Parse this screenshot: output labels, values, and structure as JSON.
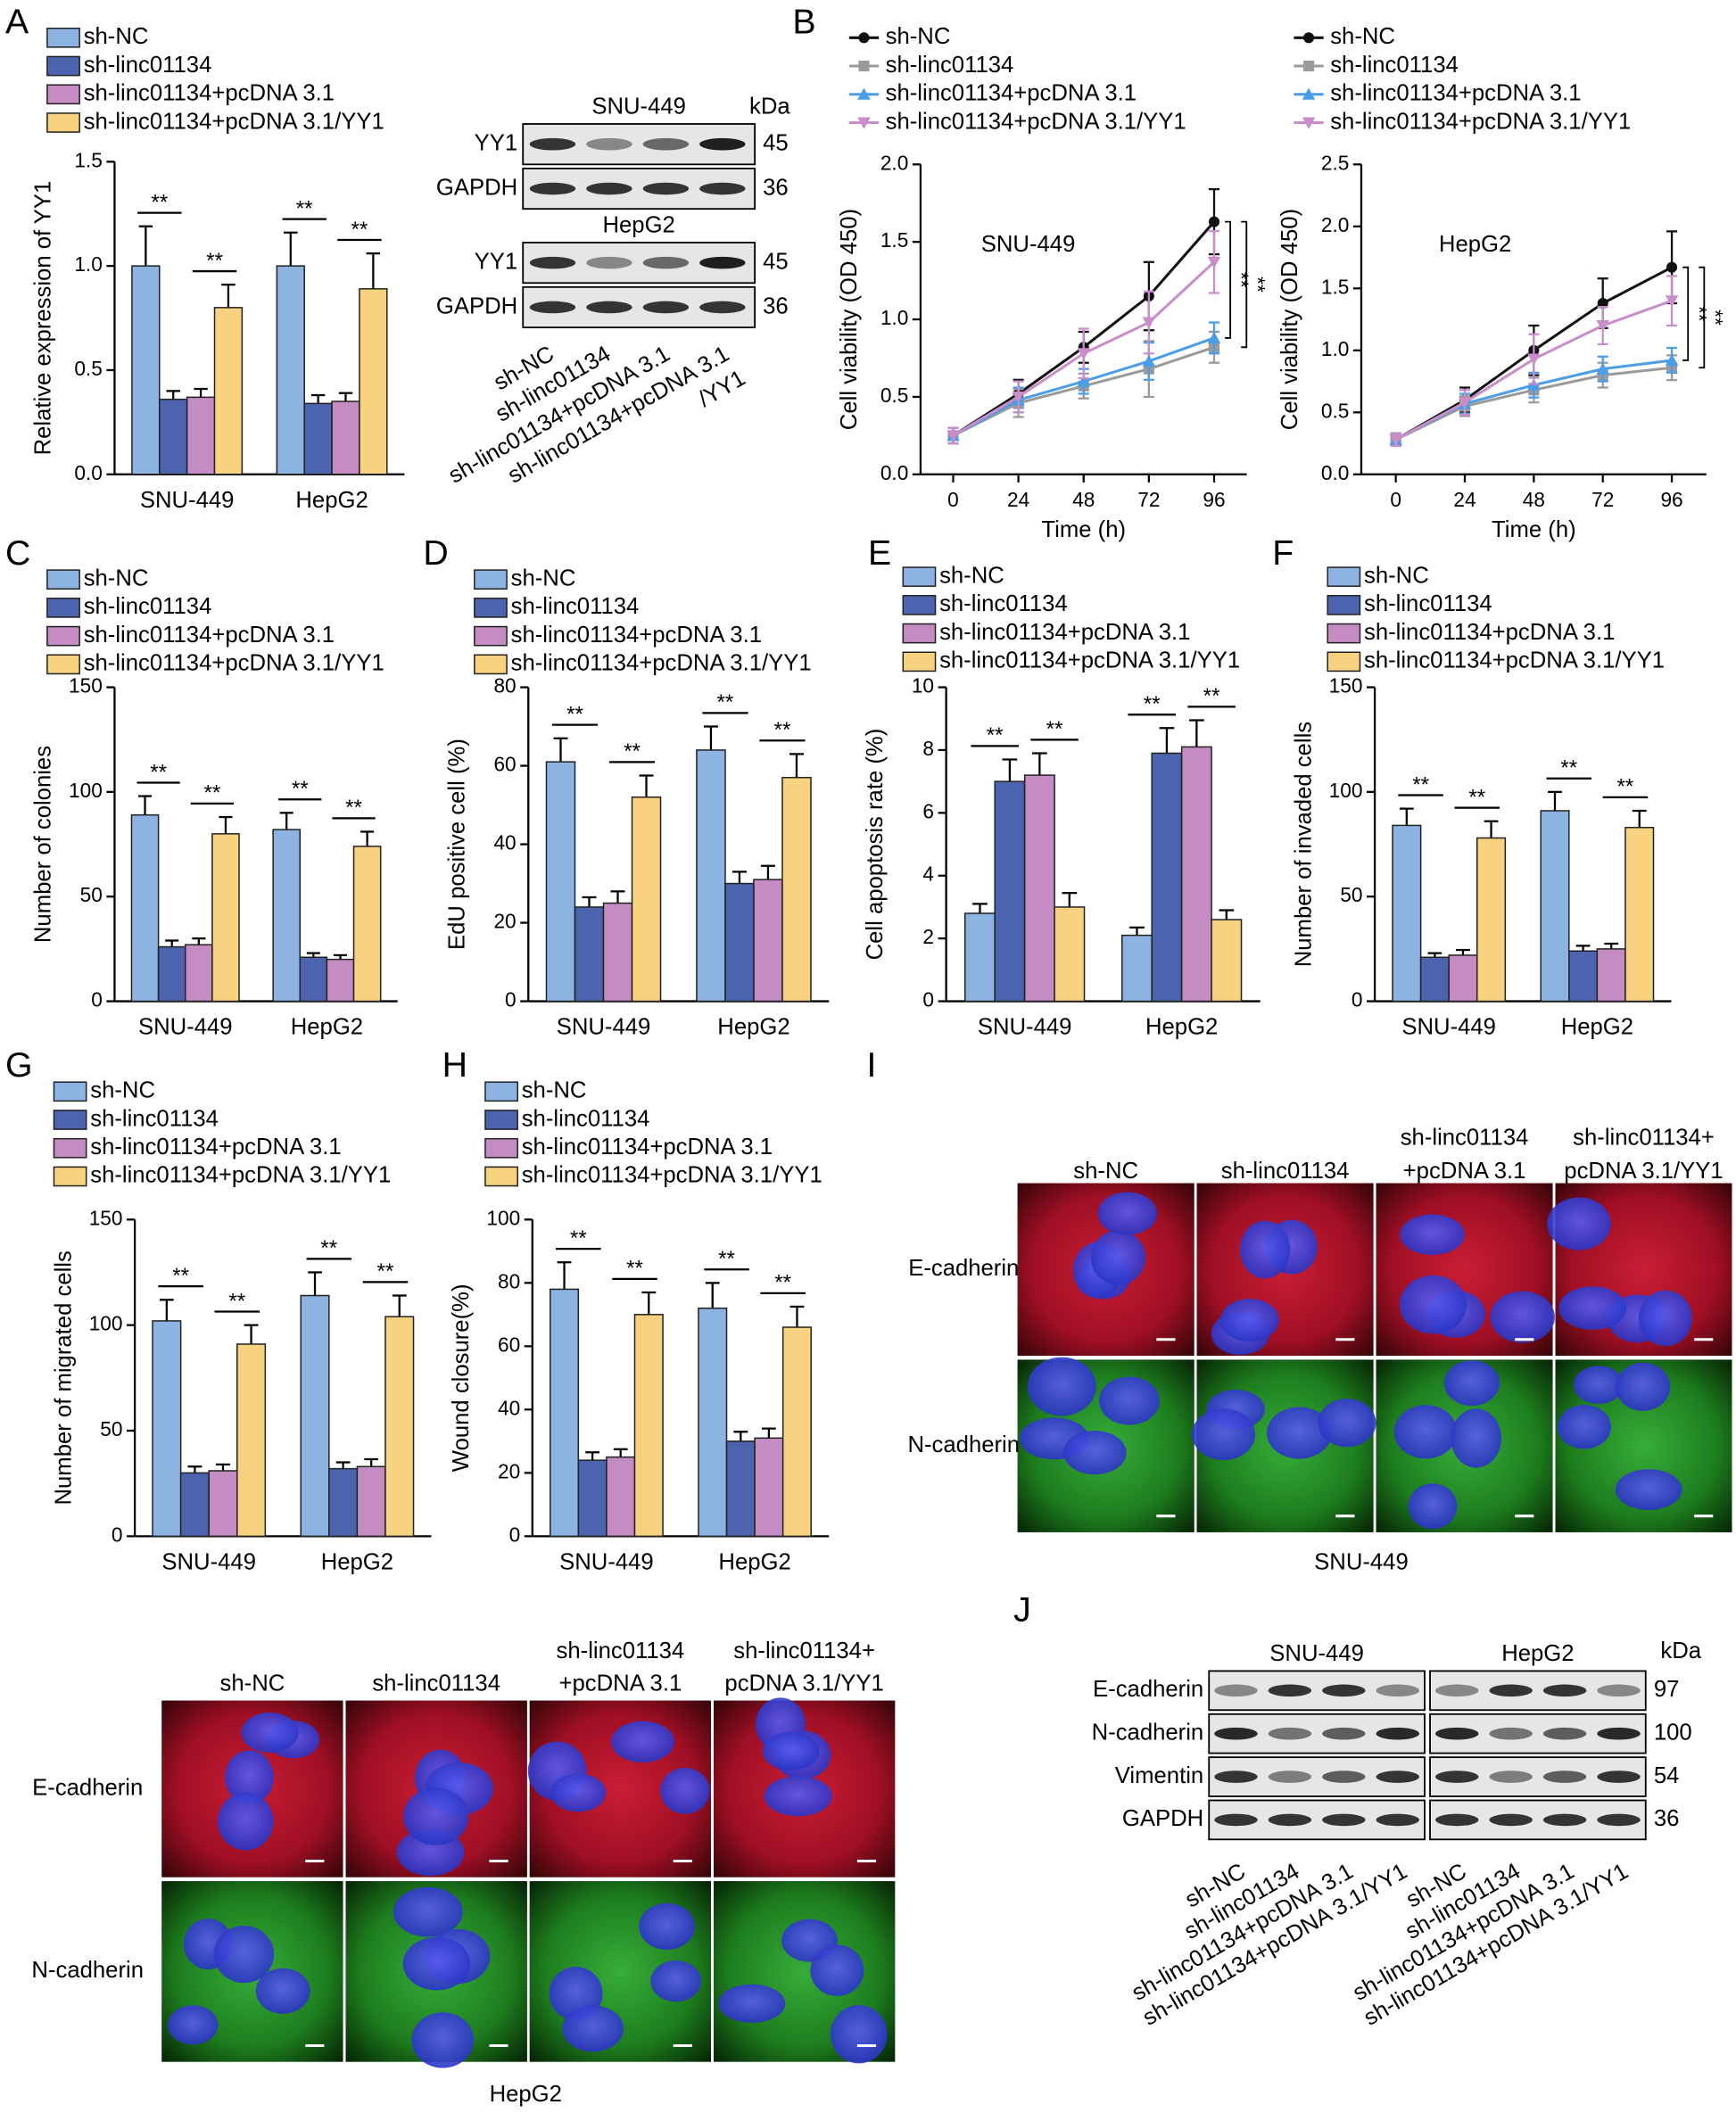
{
  "panel_labels": [
    "A",
    "B",
    "C",
    "D",
    "E",
    "F",
    "G",
    "H",
    "I",
    "J"
  ],
  "chart_data": [
    {
      "type": "bar",
      "ylabel": "Relative expression of YY1",
      "categories": [
        "SNU-449",
        "HepG2"
      ],
      "ylim": [
        0,
        1.5
      ],
      "yticks": [
        {
          "value": 0,
          "label": "0.0"
        },
        {
          "value": 0.5,
          "label": "0.5"
        },
        {
          "value": 1,
          "label": "1.0"
        },
        {
          "value": 1.5,
          "label": "1.5"
        }
      ],
      "series": [
        {
          "name": "sh-NC",
          "color": "#8db3e2",
          "values": [
            1.0,
            1.0
          ],
          "errors": [
            0.19,
            0.16
          ]
        },
        {
          "name": "sh-linc01134",
          "color": "#4c63ad",
          "values": [
            0.36,
            0.34
          ],
          "errors": [
            0.04,
            0.04
          ]
        },
        {
          "name": "sh-linc01134+pcDNA 3.1",
          "color": "#c58cc3",
          "values": [
            0.37,
            0.35
          ],
          "errors": [
            0.04,
            0.04
          ]
        },
        {
          "name": "sh-linc01134+pcDNA 3.1/YY1",
          "color": "#f8d27f",
          "values": [
            0.8,
            0.89
          ],
          "errors": [
            0.11,
            0.17
          ]
        }
      ],
      "significance": [
        "**",
        "**",
        "**",
        "**"
      ]
    },
    {
      "type": "line",
      "ylabel": "Cell viability (OD 450)",
      "xlabel": "Time (h)",
      "annotation": "SNU-449",
      "x": [
        0,
        24,
        48,
        72,
        96
      ],
      "xlim": [
        -12,
        108
      ],
      "xticks": [
        0,
        24,
        48,
        72,
        96
      ],
      "ylim": [
        0,
        2
      ],
      "yticks": [
        {
          "value": 0,
          "label": "0.0"
        },
        {
          "value": 0.5,
          "label": "0.5"
        },
        {
          "value": 1,
          "label": "1.0"
        },
        {
          "value": 1.5,
          "label": "1.5"
        },
        {
          "value": 2,
          "label": "2.0"
        }
      ],
      "series": [
        {
          "name": "sh-NC",
          "color": "#111111",
          "marker": "circle",
          "values": [
            0.25,
            0.52,
            0.82,
            1.15,
            1.63
          ],
          "errors": [
            0.05,
            0.09,
            0.1,
            0.22,
            0.21
          ]
        },
        {
          "name": "sh-linc01134",
          "color": "#9a9a9a",
          "marker": "square",
          "values": [
            0.25,
            0.46,
            0.57,
            0.68,
            0.82
          ],
          "errors": [
            0.05,
            0.09,
            0.08,
            0.18,
            0.1
          ]
        },
        {
          "name": "sh-linc01134+pcDNA 3.1",
          "color": "#4a9ee8",
          "marker": "triangle-up",
          "values": [
            0.25,
            0.48,
            0.6,
            0.73,
            0.88
          ],
          "errors": [
            0.05,
            0.08,
            0.08,
            0.12,
            0.1
          ]
        },
        {
          "name": "sh-linc01134+pcDNA 3.1/YY1",
          "color": "#c98ec9",
          "marker": "triangle-down",
          "values": [
            0.25,
            0.5,
            0.78,
            0.98,
            1.37
          ],
          "errors": [
            0.05,
            0.1,
            0.16,
            0.2,
            0.2
          ]
        }
      ],
      "significance": [
        "**",
        "**"
      ]
    },
    {
      "type": "line",
      "ylabel": "Cell viability (OD 450)",
      "xlabel": "Time (h)",
      "annotation": "HepG2",
      "x": [
        0,
        24,
        48,
        72,
        96
      ],
      "xlim": [
        -12,
        108
      ],
      "xticks": [
        0,
        24,
        48,
        72,
        96
      ],
      "ylim": [
        0,
        2.5
      ],
      "yticks": [
        {
          "value": 0,
          "label": "0.0"
        },
        {
          "value": 0.5,
          "label": "0.5"
        },
        {
          "value": 1,
          "label": "1.0"
        },
        {
          "value": 1.5,
          "label": "1.5"
        },
        {
          "value": 2,
          "label": "2.0"
        },
        {
          "value": 2.5,
          "label": "2.5"
        }
      ],
      "series": [
        {
          "name": "sh-NC",
          "color": "#111111",
          "marker": "circle",
          "values": [
            0.28,
            0.6,
            1.0,
            1.38,
            1.67
          ],
          "errors": [
            0.05,
            0.1,
            0.2,
            0.2,
            0.29
          ]
        },
        {
          "name": "sh-linc01134",
          "color": "#9a9a9a",
          "marker": "square",
          "values": [
            0.28,
            0.55,
            0.68,
            0.8,
            0.86
          ],
          "errors": [
            0.05,
            0.08,
            0.1,
            0.1,
            0.1
          ]
        },
        {
          "name": "sh-linc01134+pcDNA 3.1",
          "color": "#4a9ee8",
          "marker": "triangle-up",
          "values": [
            0.28,
            0.57,
            0.72,
            0.85,
            0.92
          ],
          "errors": [
            0.05,
            0.08,
            0.1,
            0.1,
            0.1
          ]
        },
        {
          "name": "sh-linc01134+pcDNA 3.1/YY1",
          "color": "#c98ec9",
          "marker": "triangle-down",
          "values": [
            0.28,
            0.58,
            0.93,
            1.2,
            1.4
          ],
          "errors": [
            0.05,
            0.1,
            0.2,
            0.15,
            0.2
          ]
        }
      ],
      "significance": [
        "**",
        "**"
      ]
    },
    {
      "type": "bar",
      "ylabel": "Number of colonies",
      "categories": [
        "SNU-449",
        "HepG2"
      ],
      "ylim": [
        0,
        150
      ],
      "yticks": [
        0,
        50,
        100,
        150
      ],
      "series": [
        {
          "name": "sh-NC",
          "color": "#8db3e2",
          "values": [
            89,
            82
          ],
          "errors": [
            9,
            8
          ]
        },
        {
          "name": "sh-linc01134",
          "color": "#4c63ad",
          "values": [
            26,
            21
          ],
          "errors": [
            3,
            2
          ]
        },
        {
          "name": "sh-linc01134+pcDNA 3.1",
          "color": "#c58cc3",
          "values": [
            27,
            20
          ],
          "errors": [
            3,
            2
          ]
        },
        {
          "name": "sh-linc01134+pcDNA 3.1/YY1",
          "color": "#f8d27f",
          "values": [
            80,
            74
          ],
          "errors": [
            8,
            7
          ]
        }
      ],
      "significance": [
        "**",
        "**",
        "**",
        "**"
      ]
    },
    {
      "type": "bar",
      "ylabel": "EdU positive cell (%)",
      "categories": [
        "SNU-449",
        "HepG2"
      ],
      "ylim": [
        0,
        80
      ],
      "yticks": [
        0,
        20,
        40,
        60,
        80
      ],
      "series": [
        {
          "name": "sh-NC",
          "color": "#8db3e2",
          "values": [
            61,
            64
          ],
          "errors": [
            6,
            6
          ]
        },
        {
          "name": "sh-linc01134",
          "color": "#4c63ad",
          "values": [
            24,
            30
          ],
          "errors": [
            2.5,
            3
          ]
        },
        {
          "name": "sh-linc01134+pcDNA 3.1",
          "color": "#c58cc3",
          "values": [
            25,
            31
          ],
          "errors": [
            3,
            3.5
          ]
        },
        {
          "name": "sh-linc01134+pcDNA 3.1/YY1",
          "color": "#f8d27f",
          "values": [
            52,
            57
          ],
          "errors": [
            5.5,
            6
          ]
        }
      ],
      "significance": [
        "**",
        "**",
        "**",
        "**"
      ]
    },
    {
      "type": "bar",
      "ylabel": "Cell apoptosis rate (%)",
      "categories": [
        "SNU-449",
        "HepG2"
      ],
      "ylim": [
        0,
        10
      ],
      "yticks": [
        0,
        2,
        4,
        6,
        8,
        10
      ],
      "series": [
        {
          "name": "sh-NC",
          "color": "#8db3e2",
          "values": [
            2.8,
            2.1
          ],
          "errors": [
            0.3,
            0.25
          ]
        },
        {
          "name": "sh-linc01134",
          "color": "#4c63ad",
          "values": [
            7.0,
            7.9
          ],
          "errors": [
            0.7,
            0.8
          ]
        },
        {
          "name": "sh-linc01134+pcDNA 3.1",
          "color": "#c58cc3",
          "values": [
            7.2,
            8.1
          ],
          "errors": [
            0.7,
            0.85
          ]
        },
        {
          "name": "sh-linc01134+pcDNA 3.1/YY1",
          "color": "#f8d27f",
          "values": [
            3.0,
            2.6
          ],
          "errors": [
            0.45,
            0.3
          ]
        }
      ],
      "significance": [
        "**",
        "**",
        "**",
        "**"
      ]
    },
    {
      "type": "bar",
      "ylabel": "Number of invaded cells",
      "categories": [
        "SNU-449",
        "HepG2"
      ],
      "ylim": [
        0,
        150
      ],
      "yticks": [
        0,
        50,
        100,
        150
      ],
      "series": [
        {
          "name": "sh-NC",
          "color": "#8db3e2",
          "values": [
            84,
            91
          ],
          "errors": [
            8,
            9
          ]
        },
        {
          "name": "sh-linc01134",
          "color": "#4c63ad",
          "values": [
            21,
            24
          ],
          "errors": [
            2,
            2.5
          ]
        },
        {
          "name": "sh-linc01134+pcDNA 3.1",
          "color": "#c58cc3",
          "values": [
            22,
            25
          ],
          "errors": [
            2.5,
            2.5
          ]
        },
        {
          "name": "sh-linc01134+pcDNA 3.1/YY1",
          "color": "#f8d27f",
          "values": [
            78,
            83
          ],
          "errors": [
            8,
            8
          ]
        }
      ],
      "significance": [
        "**",
        "**",
        "**",
        "**"
      ]
    },
    {
      "type": "bar",
      "ylabel": "Number of migrated cells",
      "categories": [
        "SNU-449",
        "HepG2"
      ],
      "ylim": [
        0,
        150
      ],
      "yticks": [
        0,
        50,
        100,
        150
      ],
      "series": [
        {
          "name": "sh-NC",
          "color": "#8db3e2",
          "values": [
            102,
            114
          ],
          "errors": [
            10,
            11
          ]
        },
        {
          "name": "sh-linc01134",
          "color": "#4c63ad",
          "values": [
            30,
            32
          ],
          "errors": [
            3,
            3
          ]
        },
        {
          "name": "sh-linc01134+pcDNA 3.1",
          "color": "#c58cc3",
          "values": [
            31,
            33
          ],
          "errors": [
            3,
            3.5
          ]
        },
        {
          "name": "sh-linc01134+pcDNA 3.1/YY1",
          "color": "#f8d27f",
          "values": [
            91,
            104
          ],
          "errors": [
            9,
            10
          ]
        }
      ],
      "significance": [
        "**",
        "**",
        "**",
        "**"
      ]
    },
    {
      "type": "bar",
      "ylabel": "Wound closure(%)",
      "categories": [
        "SNU-449",
        "HepG2"
      ],
      "ylim": [
        0,
        100
      ],
      "yticks": [
        0,
        20,
        40,
        60,
        80,
        100
      ],
      "series": [
        {
          "name": "sh-NC",
          "color": "#8db3e2",
          "values": [
            78,
            72
          ],
          "errors": [
            8.5,
            8
          ]
        },
        {
          "name": "sh-linc01134",
          "color": "#4c63ad",
          "values": [
            24,
            30
          ],
          "errors": [
            2.5,
            3
          ]
        },
        {
          "name": "sh-linc01134+pcDNA 3.1",
          "color": "#c58cc3",
          "values": [
            25,
            31
          ],
          "errors": [
            2.5,
            3
          ]
        },
        {
          "name": "sh-linc01134+pcDNA 3.1/YY1",
          "color": "#f8d27f",
          "values": [
            70,
            66
          ],
          "errors": [
            7,
            6.5
          ]
        }
      ],
      "significance": [
        "**",
        "**",
        "**",
        "**"
      ]
    }
  ],
  "blots": {
    "A": {
      "unit": "kDa",
      "groups": [
        {
          "title": "SNU-449",
          "rows": [
            "YY1",
            "GAPDH"
          ],
          "sizes": [
            "45",
            "36"
          ]
        },
        {
          "title": "HepG2",
          "rows": [
            "YY1",
            "GAPDH"
          ],
          "sizes": [
            "45",
            "36"
          ]
        }
      ],
      "lanes": [
        "sh-NC",
        "sh-linc01134",
        "sh-linc01134+pcDNA 3.1",
        "sh-linc01134+pcDNA 3.1",
        "/YY1"
      ]
    },
    "J": {
      "unit": "kDa",
      "titles": [
        "SNU-449",
        "HepG2"
      ],
      "rows": [
        "E-cadherin",
        "N-cadherin",
        "Vimentin",
        "GAPDH"
      ],
      "sizes": [
        "97",
        "100",
        "54",
        "36"
      ],
      "lanes": [
        "sh-NC",
        "sh-linc01134",
        "sh-linc01134+pcDNA 3.1",
        "sh-linc01134+pcDNA 3.1/YY1",
        "sh-NC",
        "sh-linc01134",
        "sh-linc01134+pcDNA 3.1",
        "sh-linc01134+pcDNA 3.1/YY1"
      ]
    }
  },
  "microscopy": [
    {
      "columns": [
        [
          "sh-NC"
        ],
        [
          "sh-linc01134"
        ],
        [
          "sh-linc01134",
          "+pcDNA 3.1"
        ],
        [
          "sh-linc01134+",
          "pcDNA 3.1/YY1"
        ]
      ],
      "rows": [
        "E-cadherin",
        "N-cadherin"
      ],
      "caption": "SNU-449"
    },
    {
      "columns": [
        [
          "sh-NC"
        ],
        [
          "sh-linc01134"
        ],
        [
          "sh-linc01134",
          "+pcDNA 3.1"
        ],
        [
          "sh-linc01134+",
          "pcDNA 3.1/YY1"
        ]
      ],
      "rows": [
        "E-cadherin",
        "N-cadherin"
      ],
      "caption": "HepG2"
    }
  ]
}
